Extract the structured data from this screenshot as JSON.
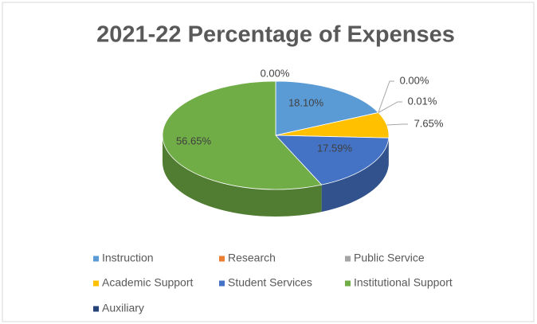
{
  "chart_data": {
    "type": "pie3d",
    "title": "2021-22 Percentage of Expenses",
    "categories": [
      "Instruction",
      "Research",
      "Public Service",
      "Academic Support",
      "Student Services",
      "Institutional Support",
      "Auxiliary"
    ],
    "values": [
      18.1,
      0.0,
      0.01,
      7.65,
      17.59,
      56.65,
      0.0
    ],
    "value_labels": [
      "18.10%",
      "0.00%",
      "0.01%",
      "7.65%",
      "17.59%",
      "56.65%",
      "0.00%"
    ],
    "colors": [
      "#5b9bd5",
      "#ed7d31",
      "#a5a5a5",
      "#ffc000",
      "#4472c4",
      "#70ad47",
      "#264478"
    ],
    "legend": "bottom"
  }
}
